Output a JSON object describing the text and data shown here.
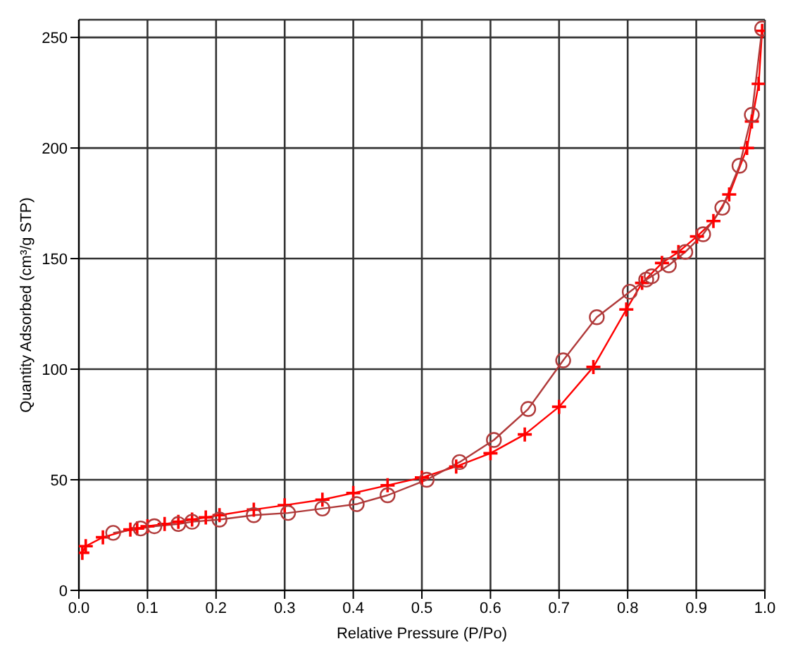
{
  "chart_data": {
    "type": "line",
    "xlabel": "Relative Pressure (P/Po)",
    "ylabel": "Quantity Adsorbed (cm³/g STP)",
    "xlim": [
      0,
      1
    ],
    "ylim": [
      0,
      258
    ],
    "xticks": [
      {
        "value": 0,
        "label": "0.0"
      },
      0.1,
      0.2,
      0.3,
      0.4,
      0.5,
      0.6,
      0.7,
      0.8,
      0.9,
      {
        "value": 1,
        "label": "1.0"
      }
    ],
    "yticks": [
      0,
      50,
      100,
      150,
      200,
      250
    ],
    "grid": true,
    "series": [
      {
        "color": "#ff0000",
        "marker": "cross",
        "x": [
          0.005,
          0.01,
          0.035,
          0.075,
          0.085,
          0.1,
          0.125,
          0.145,
          0.165,
          0.185,
          0.205,
          0.255,
          0.3,
          0.355,
          0.4,
          0.45,
          0.5,
          0.55,
          0.6,
          0.65,
          0.7,
          0.75,
          0.798,
          0.821,
          0.85,
          0.874,
          0.901,
          0.925,
          0.948,
          0.974,
          0.981,
          0.991,
          0.996
        ],
        "values": [
          17,
          20,
          24,
          27.5,
          28,
          29,
          30,
          31,
          32,
          33,
          34,
          36.5,
          38.5,
          41,
          44,
          47.5,
          51,
          56,
          62,
          70.5,
          83,
          101,
          127,
          139,
          148,
          153,
          160,
          167,
          179,
          200,
          212,
          229,
          253
        ]
      },
      {
        "color": "#b03a3a",
        "marker": "circle",
        "x": [
          0.996,
          0.981,
          0.963,
          0.938,
          0.91,
          0.884,
          0.86,
          0.835,
          0.827,
          0.803,
          0.755,
          0.706,
          0.655,
          0.605,
          0.555,
          0.507,
          0.45,
          0.405,
          0.355,
          0.305,
          0.255,
          0.205,
          0.165,
          0.145,
          0.11,
          0.09,
          0.05
        ],
        "values": [
          254,
          215,
          192,
          173,
          161,
          153,
          147,
          142,
          140.5,
          135,
          123.5,
          104,
          82,
          68,
          58,
          50,
          43,
          39,
          37,
          35,
          34,
          32,
          31,
          30,
          29,
          28,
          26
        ]
      }
    ]
  }
}
